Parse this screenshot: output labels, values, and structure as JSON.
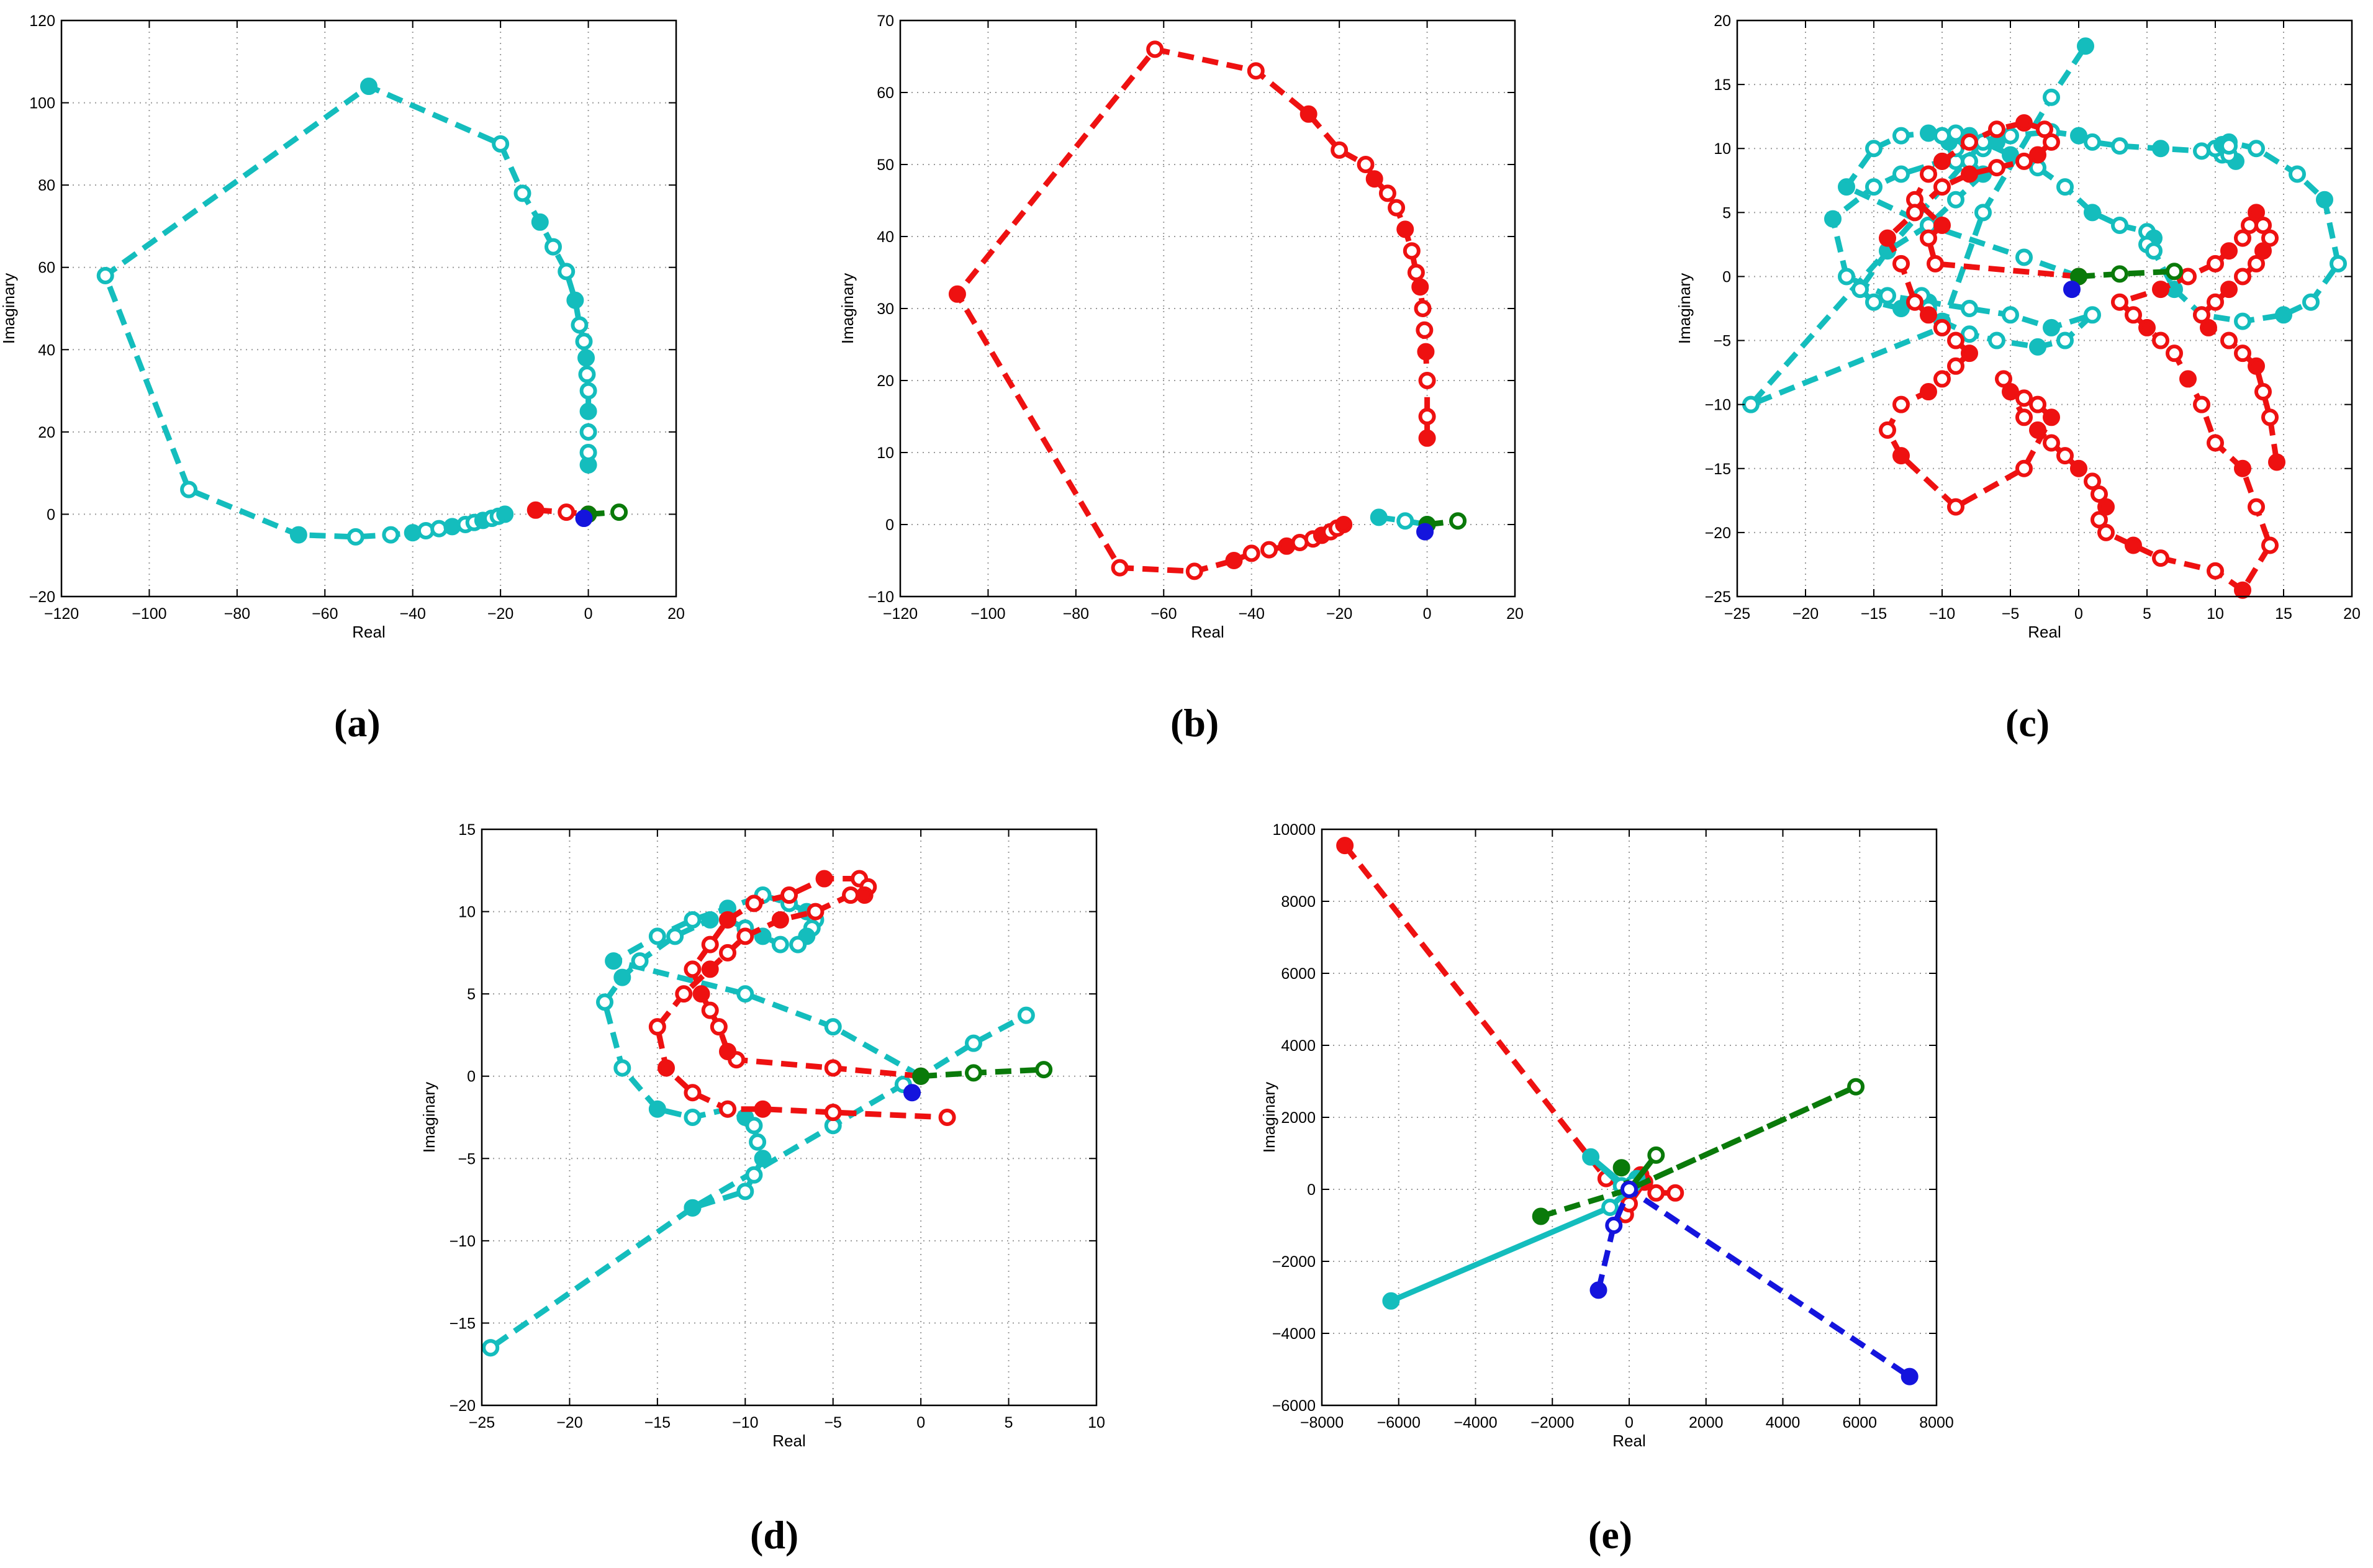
{
  "figure": {
    "captions": [
      "(a)",
      "(b)",
      "(c)",
      "(d)",
      "(e)"
    ]
  },
  "colors": {
    "cyan": "#14bdbd",
    "red": "#ee1111",
    "green": "#0a7a0a",
    "blue": "#1414dd",
    "grid": "#9a9a9a"
  },
  "chart_data": [
    {
      "id": "a",
      "type": "scatter",
      "caption": "(a)",
      "xlabel": "Real",
      "ylabel": "Imaginary",
      "xlim": [
        -120,
        20
      ],
      "ylim": [
        -20,
        120
      ],
      "xticks": [
        -120,
        -100,
        -80,
        -60,
        -40,
        -20,
        0,
        20
      ],
      "yticks": [
        -20,
        0,
        20,
        40,
        60,
        80,
        100,
        120
      ],
      "grid": true,
      "series": [
        {
          "name": "cyan",
          "color": "cyan",
          "dash": true,
          "x": [
            0,
            0,
            0,
            0,
            0,
            -0.3,
            -0.5,
            -1,
            -2,
            -3,
            -5,
            -8,
            -11,
            -15,
            -20,
            -50,
            -110,
            -91,
            -66,
            -53,
            -45,
            -40,
            -37,
            -34,
            -31,
            -28,
            -26,
            -24,
            -22,
            -20.5,
            -19
          ],
          "y": [
            12,
            15,
            20,
            25,
            30,
            34,
            38,
            42,
            46,
            52,
            59,
            65,
            71,
            78,
            90,
            104,
            58,
            6,
            -5,
            -5.5,
            -5,
            -4.5,
            -4,
            -3.5,
            -3,
            -2.5,
            -2,
            -1.5,
            -1,
            -0.5,
            0
          ]
        },
        {
          "name": "red",
          "color": "red",
          "dash": true,
          "x": [
            -12,
            -5,
            0
          ],
          "y": [
            1,
            0.5,
            0
          ]
        },
        {
          "name": "green",
          "color": "green",
          "dash": true,
          "x": [
            0,
            7
          ],
          "y": [
            0,
            0.5
          ]
        },
        {
          "name": "blue",
          "color": "blue",
          "dash": false,
          "x": [
            -1
          ],
          "y": [
            -1
          ]
        }
      ]
    },
    {
      "id": "b",
      "type": "scatter",
      "caption": "(b)",
      "xlabel": "Real",
      "ylabel": "Imaginary",
      "xlim": [
        -120,
        20
      ],
      "ylim": [
        -10,
        70
      ],
      "xticks": [
        -120,
        -100,
        -80,
        -60,
        -40,
        -20,
        0,
        20
      ],
      "yticks": [
        -10,
        0,
        10,
        20,
        30,
        40,
        50,
        60,
        70
      ],
      "grid": true,
      "series": [
        {
          "name": "red",
          "color": "red",
          "dash": true,
          "x": [
            0,
            0,
            0,
            -0.3,
            -0.6,
            -1,
            -1.6,
            -2.5,
            -3.5,
            -5,
            -7,
            -9,
            -12,
            -14,
            -20,
            -27,
            -39,
            -62,
            -107,
            -70,
            -53,
            -44,
            -40,
            -36,
            -32,
            -29,
            -26,
            -24,
            -22,
            -20.5,
            -19
          ],
          "y": [
            12,
            15,
            20,
            24,
            27,
            30,
            33,
            35,
            38,
            41,
            44,
            46,
            48,
            50,
            52,
            57,
            63,
            66,
            32,
            -6,
            -6.5,
            -5,
            -4,
            -3.5,
            -3,
            -2.5,
            -2,
            -1.5,
            -1,
            -0.5,
            0
          ]
        },
        {
          "name": "cyan",
          "color": "cyan",
          "dash": true,
          "x": [
            -11,
            -5,
            0
          ],
          "y": [
            1,
            0.5,
            0
          ]
        },
        {
          "name": "green",
          "color": "green",
          "dash": true,
          "x": [
            0,
            7
          ],
          "y": [
            0,
            0.5
          ]
        },
        {
          "name": "blue",
          "color": "blue",
          "dash": false,
          "x": [
            -0.5
          ],
          "y": [
            -1
          ]
        }
      ]
    },
    {
      "id": "c",
      "type": "scatter",
      "caption": "(c)",
      "xlabel": "Real",
      "ylabel": "Imaginary",
      "xlim": [
        -25,
        20
      ],
      "ylim": [
        -25,
        20
      ],
      "xticks": [
        -25,
        -20,
        -15,
        -10,
        -5,
        0,
        5,
        10,
        15,
        20
      ],
      "yticks": [
        -25,
        -20,
        -15,
        -10,
        -5,
        0,
        5,
        10,
        15,
        20
      ],
      "grid": true,
      "series": [
        {
          "name": "cyan",
          "color": "cyan",
          "dash": true,
          "x": [
            0,
            -4,
            -11,
            -17,
            -15,
            -13,
            -11,
            -9,
            -7,
            -5,
            -3,
            -1,
            1,
            3,
            5,
            5.5,
            5,
            5.5,
            7,
            9,
            12,
            15,
            17,
            19,
            18,
            16,
            13,
            11,
            10,
            10.5,
            11.5,
            11,
            10,
            10.5,
            11,
            9,
            6,
            3,
            1,
            0,
            -2,
            -5,
            -6,
            -7,
            -9,
            -10,
            -13,
            -15,
            -18,
            -17,
            -14,
            -11,
            -8,
            -5,
            -2,
            1,
            -1,
            -3,
            -6,
            -8,
            -10,
            -11,
            -11.5,
            -13,
            -15,
            -16,
            -14,
            -11,
            -9,
            -7,
            -8,
            -9,
            -9.5,
            -10,
            -9,
            -8,
            -7,
            -24,
            -10,
            -7,
            -2,
            0.5
          ],
          "y": [
            0,
            1.5,
            4,
            7,
            10,
            11,
            11.2,
            11,
            10.5,
            9.5,
            8.5,
            7,
            5,
            4,
            3.5,
            3,
            2.5,
            2,
            -1,
            -3,
            -3.5,
            -3,
            -2,
            1,
            6,
            8,
            10,
            10.5,
            10,
            9.5,
            9,
            9.5,
            10,
            10.3,
            10.2,
            9.8,
            10,
            10.2,
            10.5,
            11,
            11.3,
            11,
            10.5,
            10,
            9,
            9,
            8,
            7,
            4.5,
            0,
            -1.5,
            -2,
            -2.5,
            -3,
            -4,
            -3,
            -5,
            -5.5,
            -5,
            -4.5,
            -3.5,
            -2.5,
            -1.5,
            -2.5,
            -2,
            -1,
            2,
            4,
            6,
            8,
            9,
            10,
            10.5,
            11,
            11.2,
            11,
            10.5,
            -10,
            -4,
            5,
            14,
            18
          ]
        },
        {
          "name": "red",
          "color": "red",
          "dash": true,
          "x": [
            0,
            -10.5,
            -11,
            -10,
            -12,
            -11,
            -10,
            -8,
            -6,
            -4,
            -2.5,
            -2,
            -3,
            -4,
            -6,
            -8,
            -10,
            -12,
            -14,
            -13,
            -12,
            -11,
            -10,
            -9,
            -8,
            -9,
            -10,
            -11,
            -13,
            -14,
            -13,
            -9,
            -4,
            -2,
            -3,
            -4,
            -5,
            -5.5,
            -4,
            -3,
            -2,
            -1,
            0,
            1,
            1.5,
            2,
            1.5,
            2,
            4,
            6,
            10,
            12,
            14,
            13,
            12,
            10,
            9,
            8,
            7,
            6,
            5,
            4,
            3,
            6,
            8,
            10,
            11,
            12,
            12.5,
            13,
            13.5,
            14,
            13.5,
            13,
            12,
            11,
            10,
            9,
            9.5,
            11,
            12,
            13,
            13.5,
            14,
            14.5
          ],
          "y": [
            0,
            1,
            3,
            4,
            6,
            8,
            9,
            10.5,
            11.5,
            12,
            11.5,
            10.5,
            9.5,
            9,
            8.5,
            8,
            7,
            5,
            3,
            1,
            -2,
            -3,
            -4,
            -5,
            -6,
            -7,
            -8,
            -9,
            -10,
            -12,
            -14,
            -18,
            -15,
            -11,
            -10,
            -9.5,
            -9,
            -8,
            -11,
            -12,
            -13,
            -14,
            -15,
            -16,
            -17,
            -18,
            -19,
            -20,
            -21,
            -22,
            -23,
            -24.5,
            -21,
            -18,
            -15,
            -13,
            -10,
            -8,
            -6,
            -5,
            -4,
            -3,
            -2,
            -1,
            0,
            1,
            2,
            3,
            4,
            5,
            4,
            3,
            2,
            1,
            0,
            -1,
            -2,
            -3,
            -4,
            -5,
            -6,
            -7,
            -9,
            -11,
            -14.5
          ]
        },
        {
          "name": "green",
          "color": "green",
          "dash": true,
          "x": [
            0,
            3,
            7
          ],
          "y": [
            0,
            0.2,
            0.4
          ]
        },
        {
          "name": "blue",
          "color": "blue",
          "dash": false,
          "x": [
            -0.5
          ],
          "y": [
            -1
          ]
        }
      ]
    },
    {
      "id": "d",
      "type": "scatter",
      "caption": "(d)",
      "xlabel": "Real",
      "ylabel": "Imaginary",
      "xlim": [
        -25,
        10
      ],
      "ylim": [
        -20,
        15
      ],
      "xticks": [
        -25,
        -20,
        -15,
        -10,
        -5,
        0,
        5,
        10
      ],
      "yticks": [
        -20,
        -15,
        -10,
        -5,
        0,
        5,
        10,
        15
      ],
      "grid": true,
      "series": [
        {
          "name": "cyan",
          "color": "cyan",
          "dash": true,
          "x": [
            0,
            -5,
            -10,
            -17.5,
            -15,
            -13,
            -11,
            -9,
            -7.5,
            -6.5,
            -6,
            -6.2,
            -6.5,
            -7,
            -8,
            -9,
            -10,
            -11,
            -12,
            -14,
            -16,
            -17,
            -18,
            -17,
            -15,
            -13,
            -11,
            -10,
            -9.5,
            -9.3,
            -9,
            -9.5,
            -10,
            -13,
            -24.5,
            -24.5,
            -13,
            -5,
            -1,
            0,
            3,
            6
          ],
          "y": [
            0,
            3,
            5,
            7,
            8.5,
            9.5,
            10.2,
            11,
            10.5,
            10,
            9.5,
            9,
            8.5,
            8,
            8,
            8.5,
            9,
            9.5,
            9.5,
            8.5,
            7,
            6,
            4.5,
            0.5,
            -2,
            -2.5,
            -2,
            -2.5,
            -3,
            -4,
            -5,
            -6,
            -7,
            -8,
            -16.5,
            -16.5,
            -8,
            -3,
            -0.5,
            0,
            2,
            3.7
          ]
        },
        {
          "name": "red",
          "color": "red",
          "dash": true,
          "x": [
            0,
            -5,
            -10.5,
            -11,
            -11.5,
            -12,
            -12.5,
            -13,
            -12,
            -11,
            -9.5,
            -7.5,
            -5.5,
            -3.5,
            -3,
            -3.2,
            -4,
            -6,
            -8,
            -10,
            -11,
            -12,
            -13.5,
            -15,
            -14.5,
            -13,
            -11,
            -9,
            -5,
            1.5
          ],
          "y": [
            0,
            0.5,
            1,
            1.5,
            3,
            4,
            5,
            6.5,
            8,
            9.5,
            10.5,
            11,
            12,
            12,
            11.5,
            11,
            11,
            10,
            9.5,
            8.5,
            7.5,
            6.5,
            5,
            3,
            0.5,
            -1,
            -2,
            -2,
            -2.2,
            -2.5
          ]
        },
        {
          "name": "green",
          "color": "green",
          "dash": true,
          "x": [
            0,
            3,
            7
          ],
          "y": [
            0,
            0.2,
            0.4
          ]
        },
        {
          "name": "blue",
          "color": "blue",
          "dash": false,
          "x": [
            -0.5
          ],
          "y": [
            -1
          ]
        }
      ]
    },
    {
      "id": "e",
      "type": "scatter",
      "caption": "(e)",
      "xlabel": "Real",
      "ylabel": "Imaginary",
      "xlim": [
        -8000,
        8000
      ],
      "ylim": [
        -6000,
        10000
      ],
      "xticks": [
        -8000,
        -6000,
        -4000,
        -2000,
        0,
        2000,
        4000,
        6000,
        8000
      ],
      "yticks": [
        -6000,
        -4000,
        -2000,
        0,
        2000,
        4000,
        6000,
        8000,
        10000
      ],
      "grid": true,
      "series": [
        {
          "name": "red",
          "color": "red",
          "dash": true,
          "x": [
            -7400,
            -600,
            0,
            300,
            700,
            1200,
            0,
            -100,
            0,
            400
          ],
          "y": [
            9550,
            300,
            0,
            400,
            -100,
            -100,
            0,
            -700,
            -400,
            200
          ]
        },
        {
          "name": "cyan",
          "color": "cyan",
          "dash": false,
          "x": [
            -6200,
            -500,
            0,
            -1000,
            -200,
            0,
            200,
            100
          ],
          "y": [
            -3100,
            -500,
            0,
            900,
            100,
            0,
            300,
            150
          ]
        },
        {
          "name": "green",
          "color": "green",
          "dash": true,
          "x": [
            -2300,
            0,
            5900,
            0,
            700,
            0,
            -200
          ],
          "y": [
            -750,
            0,
            2850,
            0,
            950,
            0,
            600
          ]
        },
        {
          "name": "blue",
          "color": "blue",
          "dash": true,
          "x": [
            -800,
            -400,
            0,
            7300
          ],
          "y": [
            -2800,
            -1000,
            0,
            -5200
          ]
        }
      ]
    }
  ]
}
